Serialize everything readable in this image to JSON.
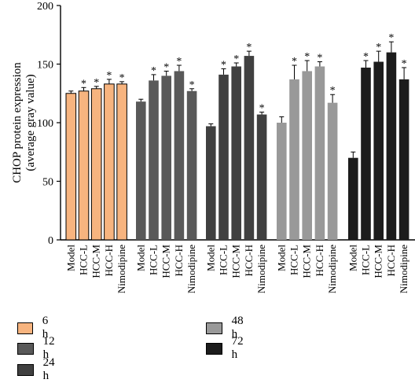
{
  "chart_data": {
    "type": "bar",
    "ylabel_lines": [
      "CHOP protein expression",
      "(average gray value)"
    ],
    "ylim": [
      0,
      200
    ],
    "yticks": [
      0,
      50,
      100,
      150,
      200
    ],
    "categories": [
      "Model",
      "HCC-L",
      "HCC-M",
      "HCC-H",
      "Nimodipine"
    ],
    "grid": false,
    "legend_position": "bottom",
    "significance_marker": "*",
    "series": [
      {
        "name": "6 h",
        "color": "#f7b47f",
        "values": [
          125,
          127,
          129,
          133,
          133
        ],
        "errors": [
          2,
          3,
          2,
          4,
          2
        ],
        "significant": [
          false,
          true,
          true,
          true,
          true
        ]
      },
      {
        "name": "12 h",
        "color": "#595959",
        "values": [
          118,
          136,
          140,
          144,
          127
        ],
        "errors": [
          2,
          5,
          4,
          5,
          2
        ],
        "significant": [
          false,
          true,
          true,
          true,
          true
        ]
      },
      {
        "name": "24 h",
        "color": "#404040",
        "values": [
          97,
          141,
          148,
          157,
          107
        ],
        "errors": [
          2,
          5,
          3,
          4,
          2
        ],
        "significant": [
          false,
          true,
          true,
          true,
          true
        ]
      },
      {
        "name": "48 h",
        "color": "#999999",
        "values": [
          100,
          137,
          144,
          148,
          117
        ],
        "errors": [
          5,
          12,
          9,
          4,
          7
        ],
        "significant": [
          false,
          true,
          true,
          true,
          true
        ]
      },
      {
        "name": "72 h",
        "color": "#1c1c1c",
        "values": [
          70,
          147,
          152,
          160,
          137
        ],
        "errors": [
          5,
          6,
          9,
          9,
          10
        ],
        "significant": [
          false,
          true,
          true,
          true,
          true
        ]
      }
    ]
  }
}
